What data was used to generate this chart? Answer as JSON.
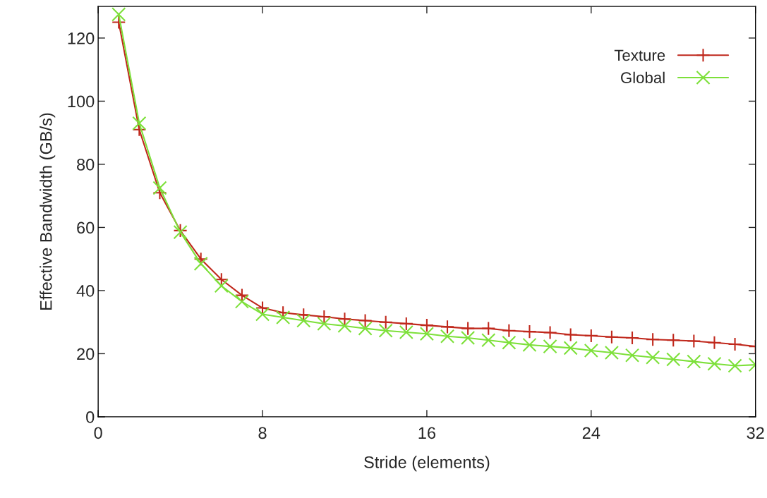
{
  "chart_data": {
    "type": "line",
    "xlabel": "Stride (elements)",
    "ylabel": "Effective Bandwidth (GB/s)",
    "x": [
      1,
      2,
      3,
      4,
      5,
      6,
      7,
      8,
      9,
      10,
      11,
      12,
      13,
      14,
      15,
      16,
      17,
      18,
      19,
      20,
      21,
      22,
      23,
      24,
      25,
      26,
      27,
      28,
      29,
      30,
      31,
      32
    ],
    "series": [
      {
        "name": "Texture",
        "color": "#c0281c",
        "marker": "plus",
        "values": [
          125,
          91,
          71,
          59,
          50,
          43.5,
          38.5,
          34.5,
          33,
          32.3,
          31.7,
          31,
          30.5,
          30,
          29.5,
          29,
          28.5,
          28,
          28,
          27.3,
          27,
          26.7,
          26,
          25.7,
          25.3,
          25,
          24.5,
          24.3,
          24,
          23.5,
          23,
          22.3
        ]
      },
      {
        "name": "Global",
        "color": "#7de03a",
        "marker": "cross",
        "values": [
          127.5,
          93,
          72.5,
          58.5,
          48.5,
          41.5,
          36.5,
          32.5,
          31.5,
          30.5,
          29.5,
          28.8,
          28,
          27.3,
          26.8,
          26.3,
          25.5,
          25,
          24.3,
          23.5,
          22.8,
          22.3,
          21.8,
          21,
          20.3,
          19.5,
          18.8,
          18.2,
          17.5,
          16.8,
          16.2,
          16.5
        ]
      }
    ],
    "xlim": [
      0,
      32
    ],
    "xticks": [
      0,
      8,
      16,
      24,
      32
    ],
    "ylim": [
      0,
      130
    ],
    "yticks": [
      0,
      20,
      40,
      60,
      80,
      100,
      120
    ],
    "grid": false,
    "legend": "top right"
  }
}
